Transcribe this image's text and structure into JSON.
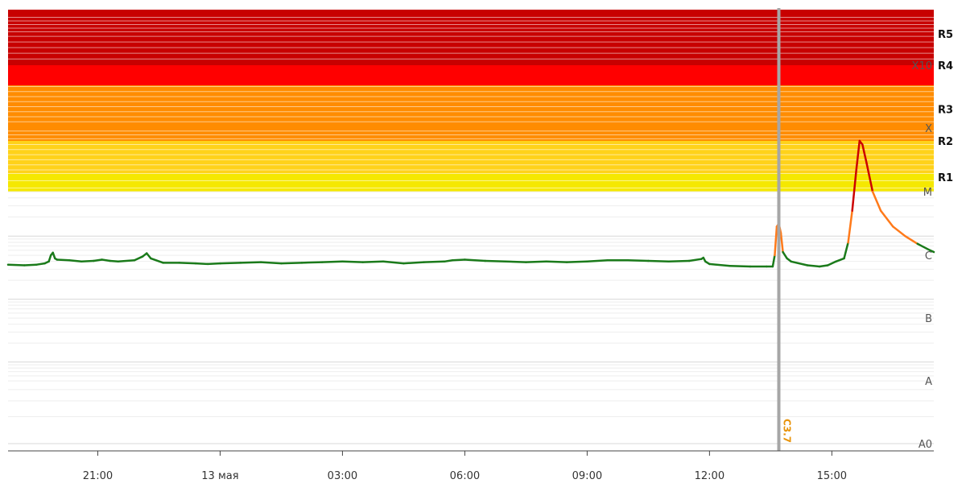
{
  "chart_data": {
    "type": "line",
    "title": "",
    "x_axis": {
      "start_hour": 18.8,
      "end_hour": 41.5,
      "ticks": [
        {
          "hour": 21,
          "label": "21:00"
        },
        {
          "hour": 24,
          "label": "13 мая"
        },
        {
          "hour": 27,
          "label": "03:00"
        },
        {
          "hour": 30,
          "label": "06:00"
        },
        {
          "hour": 33,
          "label": "09:00"
        },
        {
          "hour": 36,
          "label": "12:00"
        },
        {
          "hour": 39,
          "label": "15:00"
        }
      ]
    },
    "y_axis": {
      "scale": "log",
      "ylim": [
        -8,
        -2.7
      ],
      "class_labels": [
        {
          "label": "A0",
          "log_flux": -8
        },
        {
          "label": "A",
          "log_flux": -7.3
        },
        {
          "label": "B",
          "log_flux": -6.3
        },
        {
          "label": "C",
          "log_flux": -5.3
        },
        {
          "label": "M",
          "log_flux": -4.3
        },
        {
          "label": "X",
          "log_flux": -3.3
        },
        {
          "label": "X10",
          "log_flux": -2.3
        }
      ],
      "radio_blackout_labels": [
        {
          "label": "R1",
          "log_flux": -4.1
        },
        {
          "label": "R2",
          "log_flux": -3.6
        },
        {
          "label": "R3",
          "log_flux": -3.0
        },
        {
          "label": "R4",
          "log_flux": -2.3
        },
        {
          "label": "R5",
          "log_flux": -1.8
        }
      ]
    },
    "zones": [
      {
        "name": "R1",
        "color": "#f5e800"
      },
      {
        "name": "R2",
        "color": "#ffd21a"
      },
      {
        "name": "R3",
        "color": "#ff8c00"
      },
      {
        "name": "R4",
        "color": "#ff0000"
      },
      {
        "name": "R5",
        "color": "#c80000"
      }
    ],
    "series": [
      {
        "color_low": "#1a7a1a",
        "color_c": "#ff7a1a",
        "color_x": "#cc0000",
        "points": [
          [
            18.8,
            -5.45
          ],
          [
            19.2,
            -5.46
          ],
          [
            19.5,
            -5.45
          ],
          [
            19.7,
            -5.43
          ],
          [
            19.8,
            -5.4
          ],
          [
            19.85,
            -5.3
          ],
          [
            19.9,
            -5.26
          ],
          [
            19.95,
            -5.35
          ],
          [
            20.0,
            -5.37
          ],
          [
            20.3,
            -5.38
          ],
          [
            20.6,
            -5.4
          ],
          [
            20.9,
            -5.39
          ],
          [
            21.1,
            -5.37
          ],
          [
            21.3,
            -5.39
          ],
          [
            21.5,
            -5.4
          ],
          [
            21.9,
            -5.38
          ],
          [
            22.1,
            -5.32
          ],
          [
            22.2,
            -5.27
          ],
          [
            22.3,
            -5.35
          ],
          [
            22.6,
            -5.42
          ],
          [
            23.0,
            -5.42
          ],
          [
            23.4,
            -5.43
          ],
          [
            23.7,
            -5.44
          ],
          [
            24.0,
            -5.43
          ],
          [
            24.5,
            -5.42
          ],
          [
            25.0,
            -5.41
          ],
          [
            25.5,
            -5.43
          ],
          [
            26.0,
            -5.42
          ],
          [
            26.5,
            -5.41
          ],
          [
            27.0,
            -5.4
          ],
          [
            27.5,
            -5.41
          ],
          [
            28.0,
            -5.4
          ],
          [
            28.5,
            -5.43
          ],
          [
            29.0,
            -5.41
          ],
          [
            29.5,
            -5.4
          ],
          [
            29.7,
            -5.38
          ],
          [
            30.0,
            -5.37
          ],
          [
            30.5,
            -5.39
          ],
          [
            31.0,
            -5.4
          ],
          [
            31.5,
            -5.41
          ],
          [
            32.0,
            -5.4
          ],
          [
            32.5,
            -5.41
          ],
          [
            33.0,
            -5.4
          ],
          [
            33.5,
            -5.38
          ],
          [
            34.0,
            -5.38
          ],
          [
            34.5,
            -5.39
          ],
          [
            35.0,
            -5.4
          ],
          [
            35.5,
            -5.39
          ],
          [
            35.8,
            -5.36
          ],
          [
            35.85,
            -5.34
          ],
          [
            35.9,
            -5.4
          ],
          [
            36.0,
            -5.44
          ],
          [
            36.5,
            -5.47
          ],
          [
            37.0,
            -5.48
          ],
          [
            37.4,
            -5.48
          ],
          [
            37.55,
            -5.48
          ],
          [
            37.6,
            -5.3
          ],
          [
            37.65,
            -4.85
          ],
          [
            37.7,
            -4.8
          ],
          [
            37.75,
            -4.95
          ],
          [
            37.8,
            -5.25
          ],
          [
            37.9,
            -5.35
          ],
          [
            38.0,
            -5.4
          ],
          [
            38.4,
            -5.46
          ],
          [
            38.7,
            -5.48
          ],
          [
            38.9,
            -5.46
          ],
          [
            39.1,
            -5.4
          ],
          [
            39.3,
            -5.35
          ],
          [
            39.4,
            -5.1
          ],
          [
            39.5,
            -4.6
          ],
          [
            39.6,
            -4.0
          ],
          [
            39.68,
            -3.6
          ],
          [
            39.75,
            -3.65
          ],
          [
            39.85,
            -3.9
          ],
          [
            40.0,
            -4.3
          ],
          [
            40.2,
            -4.6
          ],
          [
            40.5,
            -4.85
          ],
          [
            40.8,
            -5.0
          ],
          [
            41.1,
            -5.12
          ],
          [
            41.4,
            -5.22
          ],
          [
            41.5,
            -5.25
          ]
        ]
      }
    ],
    "annotation": {
      "hour": 37.7,
      "label": "C3.7"
    }
  }
}
